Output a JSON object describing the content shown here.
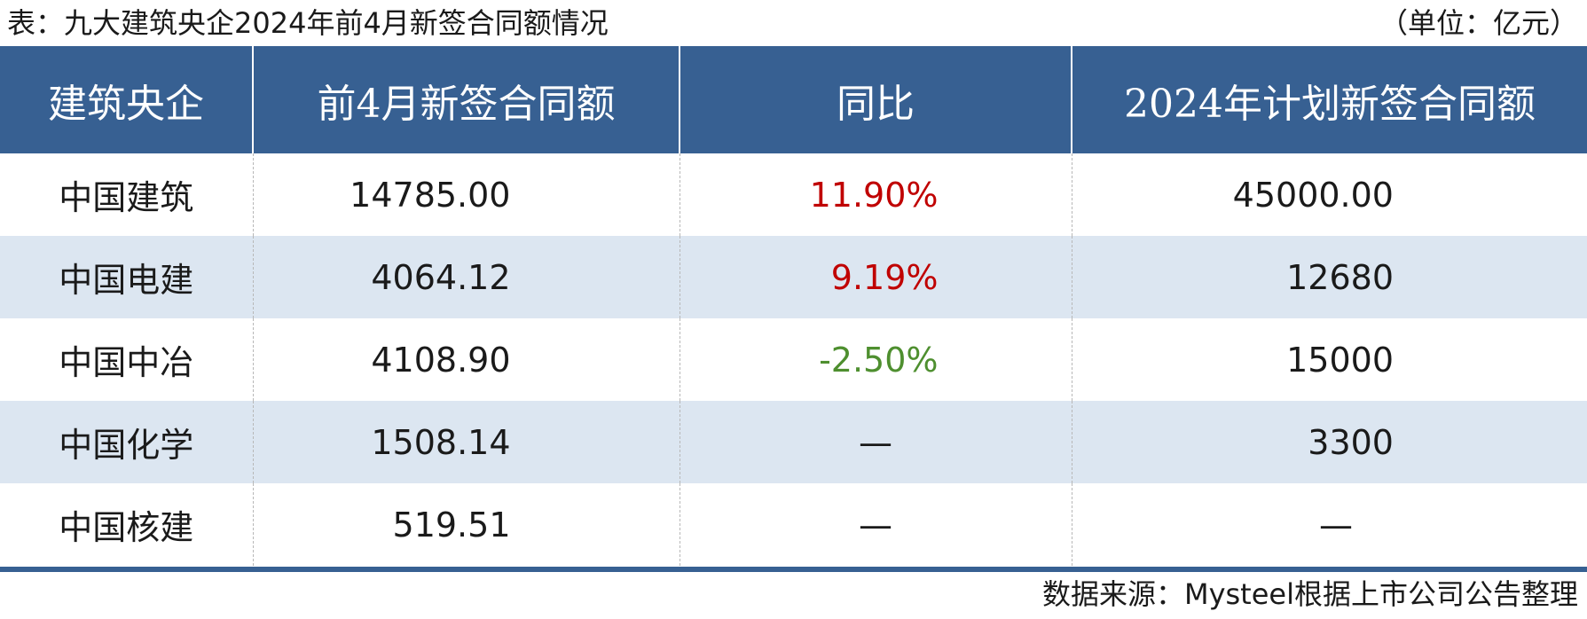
{
  "title": "表：九大建筑央企2024年前4月新签合同额情况",
  "unit": "（单位：亿元）",
  "source": "数据来源：Mysteel根据上市公司公告整理",
  "colors": {
    "header_bg": "#376092",
    "alt_row_bg": "#dce6f1",
    "positive": "#c00000",
    "negative": "#4e8f2f"
  },
  "table": {
    "headers": [
      "建筑央企",
      "前4月新签合同额",
      "同比",
      "2024年计划新签合同额"
    ],
    "rows": [
      {
        "name": "中国建筑",
        "contract": "14785.00",
        "yoy": "11.90%",
        "plan": "45000.00"
      },
      {
        "name": "中国电建",
        "contract": "4064.12",
        "yoy": "9.19%",
        "plan": "12680"
      },
      {
        "name": "中国中冶",
        "contract": "4108.90",
        "yoy": "-2.50%",
        "plan": "15000"
      },
      {
        "name": "中国化学",
        "contract": "1508.14",
        "yoy": "—",
        "plan": "3300"
      },
      {
        "name": "中国核建",
        "contract": "519.51",
        "yoy": "—",
        "plan": "—"
      }
    ]
  }
}
